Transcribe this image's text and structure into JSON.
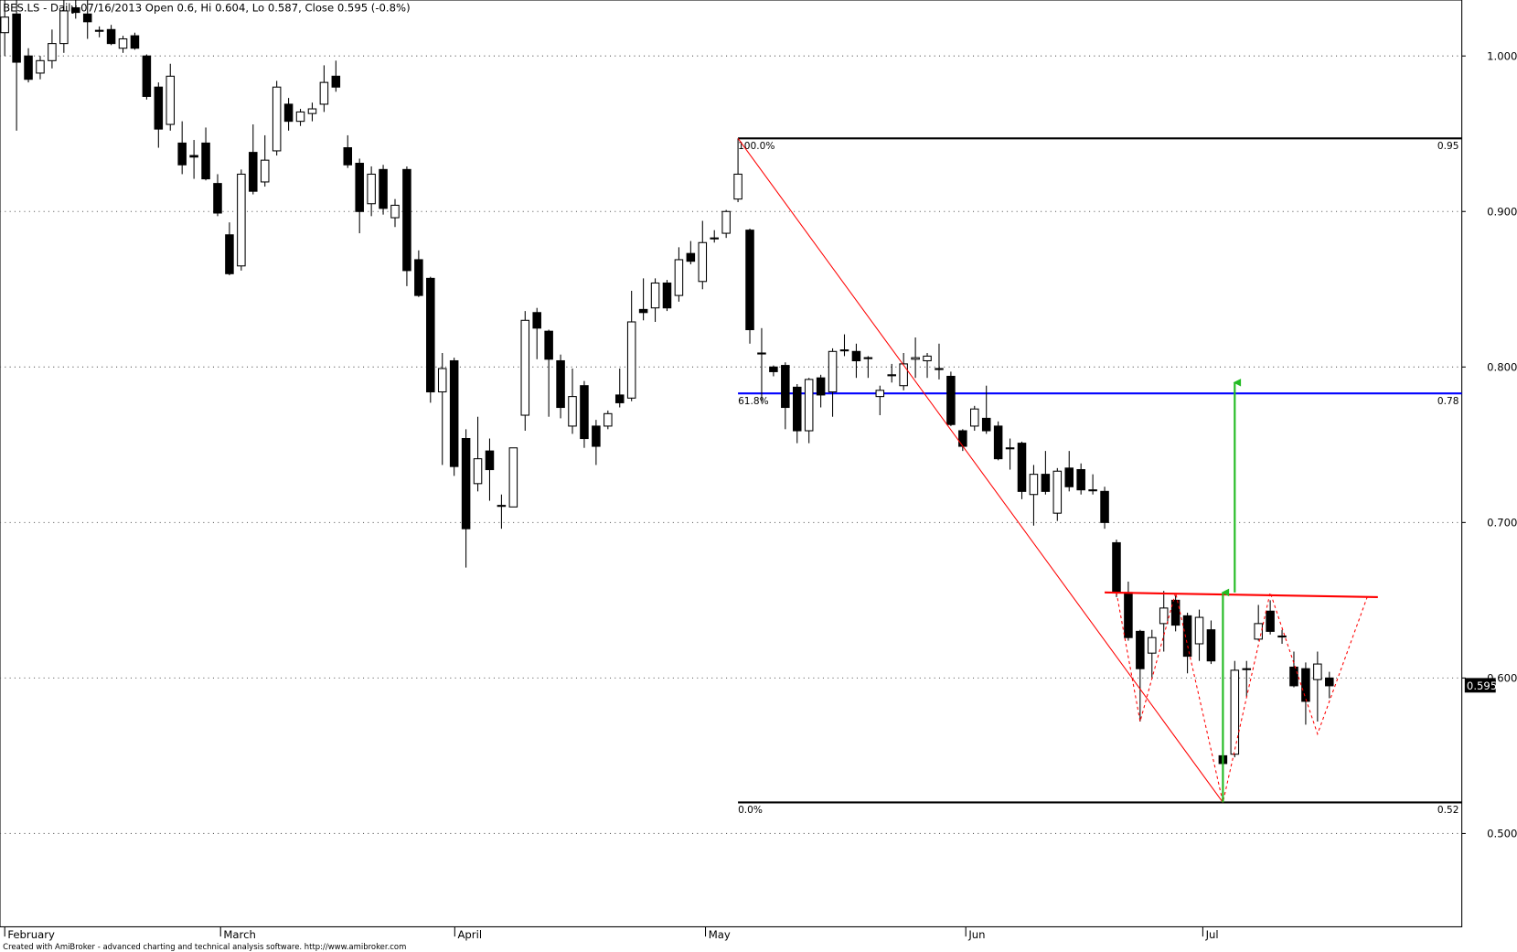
{
  "chart_data": {
    "type": "candlestick",
    "title": "BES.LS - Daily 07/16/2013 Open 0.6, Hi 0.604, Lo 0.587, Close 0.595 (-0.8%)",
    "footer": "Created with AmiBroker - advanced charting and technical analysis software. http://www.amibroker.com",
    "open": [
      1.015,
      1.027,
      1.0,
      0.989,
      0.997,
      1.008,
      1.031,
      1.027,
      1.0165,
      1.017,
      1.005,
      1.013,
      1.0,
      0.98,
      0.956,
      0.944,
      0.936,
      0.944,
      0.918,
      0.885,
      0.865,
      0.938,
      0.919,
      0.939,
      0.969,
      0.958,
      0.963,
      0.969,
      0.987,
      0.941,
      0.931,
      0.905,
      0.927,
      0.896,
      0.927,
      0.869,
      0.857,
      0.784,
      0.804,
      0.754,
      0.725,
      0.746,
      0.711,
      0.71,
      0.769,
      0.835,
      0.823,
      0.804,
      0.762,
      0.788,
      0.762,
      0.762,
      0.782,
      0.78,
      0.837,
      0.838,
      0.854,
      0.846,
      0.873,
      0.855,
      0.883,
      0.886,
      0.908,
      0.888,
      0.809,
      0.8,
      0.801,
      0.787,
      0.759,
      0.793,
      0.784,
      0.811,
      0.81,
      0.806,
      0.781,
      0.795,
      0.788,
      0.805,
      0.804,
      0.799,
      0.794,
      0.759,
      0.762,
      0.767,
      0.762,
      0.748,
      0.751,
      0.718,
      0.731,
      0.706,
      0.735,
      0.734,
      0.721,
      0.72,
      0.687,
      0.655,
      0.63,
      0.616,
      0.635,
      0.65,
      0.64,
      0.622,
      0.631,
      0.55,
      0.551,
      0.606,
      0.625,
      0.643,
      0.627,
      0.607,
      0.606,
      0.599,
      0.6
    ],
    "high": [
      1.036,
      1.036,
      1.005,
      1.0,
      1.017,
      1.036,
      1.036,
      1.036,
      1.019,
      1.02,
      1.013,
      1.015,
      1.001,
      0.983,
      0.995,
      0.958,
      0.946,
      0.954,
      0.924,
      0.893,
      0.927,
      0.956,
      0.949,
      0.984,
      0.973,
      0.966,
      0.97,
      0.994,
      0.997,
      0.949,
      0.934,
      0.929,
      0.93,
      0.908,
      0.929,
      0.875,
      0.858,
      0.809,
      0.806,
      0.76,
      0.768,
      0.754,
      0.718,
      0.748,
      0.836,
      0.838,
      0.824,
      0.808,
      0.799,
      0.791,
      0.766,
      0.772,
      0.799,
      0.849,
      0.857,
      0.857,
      0.856,
      0.877,
      0.881,
      0.894,
      0.888,
      0.901,
      0.947,
      0.889,
      0.825,
      0.801,
      0.803,
      0.789,
      0.793,
      0.795,
      0.812,
      0.821,
      0.815,
      0.807,
      0.788,
      0.802,
      0.809,
      0.819,
      0.809,
      0.815,
      0.797,
      0.76,
      0.775,
      0.788,
      0.765,
      0.754,
      0.752,
      0.737,
      0.746,
      0.735,
      0.746,
      0.738,
      0.731,
      0.723,
      0.689,
      0.662,
      0.631,
      0.631,
      0.656,
      0.653,
      0.642,
      0.644,
      0.637,
      0.553,
      0.611,
      0.611,
      0.647,
      0.65,
      0.631,
      0.617,
      0.61,
      0.617,
      0.604
    ],
    "low": [
      1.0,
      0.952,
      0.983,
      0.985,
      0.992,
      1.002,
      1.024,
      1.011,
      1.012,
      1.007,
      1.002,
      1.004,
      0.972,
      0.941,
      0.952,
      0.924,
      0.921,
      0.92,
      0.897,
      0.859,
      0.862,
      0.911,
      0.916,
      0.936,
      0.952,
      0.955,
      0.958,
      0.964,
      0.977,
      0.928,
      0.886,
      0.897,
      0.898,
      0.89,
      0.852,
      0.845,
      0.777,
      0.737,
      0.73,
      0.671,
      0.72,
      0.714,
      0.696,
      0.71,
      0.759,
      0.805,
      0.768,
      0.767,
      0.757,
      0.748,
      0.737,
      0.76,
      0.774,
      0.778,
      0.83,
      0.829,
      0.836,
      0.842,
      0.866,
      0.85,
      0.88,
      0.883,
      0.906,
      0.815,
      0.777,
      0.794,
      0.76,
      0.751,
      0.751,
      0.774,
      0.768,
      0.807,
      0.793,
      0.793,
      0.769,
      0.79,
      0.785,
      0.793,
      0.793,
      0.792,
      0.762,
      0.746,
      0.759,
      0.757,
      0.74,
      0.734,
      0.715,
      0.698,
      0.718,
      0.701,
      0.72,
      0.718,
      0.718,
      0.696,
      0.652,
      0.624,
      0.572,
      0.6,
      0.617,
      0.63,
      0.603,
      0.611,
      0.609,
      0.541,
      0.549,
      0.588,
      0.624,
      0.628,
      0.622,
      0.594,
      0.57,
      0.572,
      0.587
    ],
    "close": [
      1.025,
      0.996,
      0.985,
      0.997,
      1.008,
      1.029,
      1.028,
      1.022,
      1.016,
      1.008,
      1.011,
      1.005,
      0.974,
      0.953,
      0.987,
      0.93,
      0.935,
      0.921,
      0.899,
      0.86,
      0.924,
      0.913,
      0.933,
      0.98,
      0.958,
      0.964,
      0.966,
      0.983,
      0.98,
      0.93,
      0.9,
      0.924,
      0.902,
      0.904,
      0.862,
      0.846,
      0.784,
      0.799,
      0.736,
      0.696,
      0.741,
      0.734,
      0.711,
      0.748,
      0.83,
      0.825,
      0.805,
      0.774,
      0.781,
      0.754,
      0.749,
      0.77,
      0.777,
      0.829,
      0.835,
      0.854,
      0.838,
      0.869,
      0.868,
      0.88,
      0.883,
      0.9,
      0.924,
      0.824,
      0.809,
      0.797,
      0.774,
      0.759,
      0.792,
      0.782,
      0.81,
      0.811,
      0.804,
      0.806,
      0.785,
      0.795,
      0.802,
      0.806,
      0.807,
      0.799,
      0.763,
      0.749,
      0.773,
      0.759,
      0.741,
      0.748,
      0.72,
      0.731,
      0.72,
      0.733,
      0.723,
      0.721,
      0.721,
      0.7,
      0.655,
      0.626,
      0.606,
      0.626,
      0.645,
      0.634,
      0.614,
      0.639,
      0.611,
      0.545,
      0.605,
      0.606,
      0.635,
      0.63,
      0.627,
      0.595,
      0.585,
      0.609,
      0.595
    ],
    "xlim": [
      -0.4,
      123.2
    ],
    "ylim": [
      0.44,
      1.036
    ],
    "xticks": [
      {
        "value": 0,
        "label": "February"
      },
      {
        "value": 18.25,
        "label": "March"
      },
      {
        "value": 38.05,
        "label": "April"
      },
      {
        "value": 59.25,
        "label": "May"
      },
      {
        "value": 81.26,
        "label": "Jun"
      },
      {
        "value": 101.3,
        "label": "Jul"
      }
    ],
    "yticks": [
      {
        "value": 1.0,
        "label": "1.000"
      },
      {
        "value": 0.9,
        "label": "0.900"
      },
      {
        "value": 0.8,
        "label": "0.800"
      },
      {
        "value": 0.7,
        "label": "0.700"
      },
      {
        "value": 0.6,
        "label": "0.600"
      },
      {
        "value": 0.5,
        "label": "0.500"
      }
    ],
    "grid": true,
    "fib": {
      "x_start": 62,
      "levels": [
        {
          "value": 0.947,
          "label": "100.0%",
          "price_label": "0.95",
          "color": "#000000"
        },
        {
          "value": 0.783,
          "label": "61.8%",
          "price_label": "0.78",
          "color": "#0000ff"
        },
        {
          "value": 0.52,
          "label": "0.0%",
          "price_label": "0.52",
          "color": "#000000"
        }
      ]
    },
    "trendline": {
      "x": [
        62,
        103
      ],
      "y": [
        0.947,
        0.52
      ],
      "color": "#ff0000"
    },
    "neckline": {
      "x": [
        93,
        116.1
      ],
      "y": [
        0.655,
        0.652
      ],
      "color": "#ff0000"
    },
    "zigzag": {
      "x": [
        94,
        96,
        99,
        103,
        107,
        111,
        115.2
      ],
      "y": [
        0.655,
        0.572,
        0.655,
        0.52,
        0.655,
        0.564,
        0.652
      ],
      "color": "#ff0000"
    },
    "arrows": {
      "color": "#22bb22",
      "items": [
        {
          "x": 103,
          "from": 0.52,
          "to": 0.655
        },
        {
          "x": 104,
          "from": 0.655,
          "to": 0.79
        }
      ]
    }
  }
}
